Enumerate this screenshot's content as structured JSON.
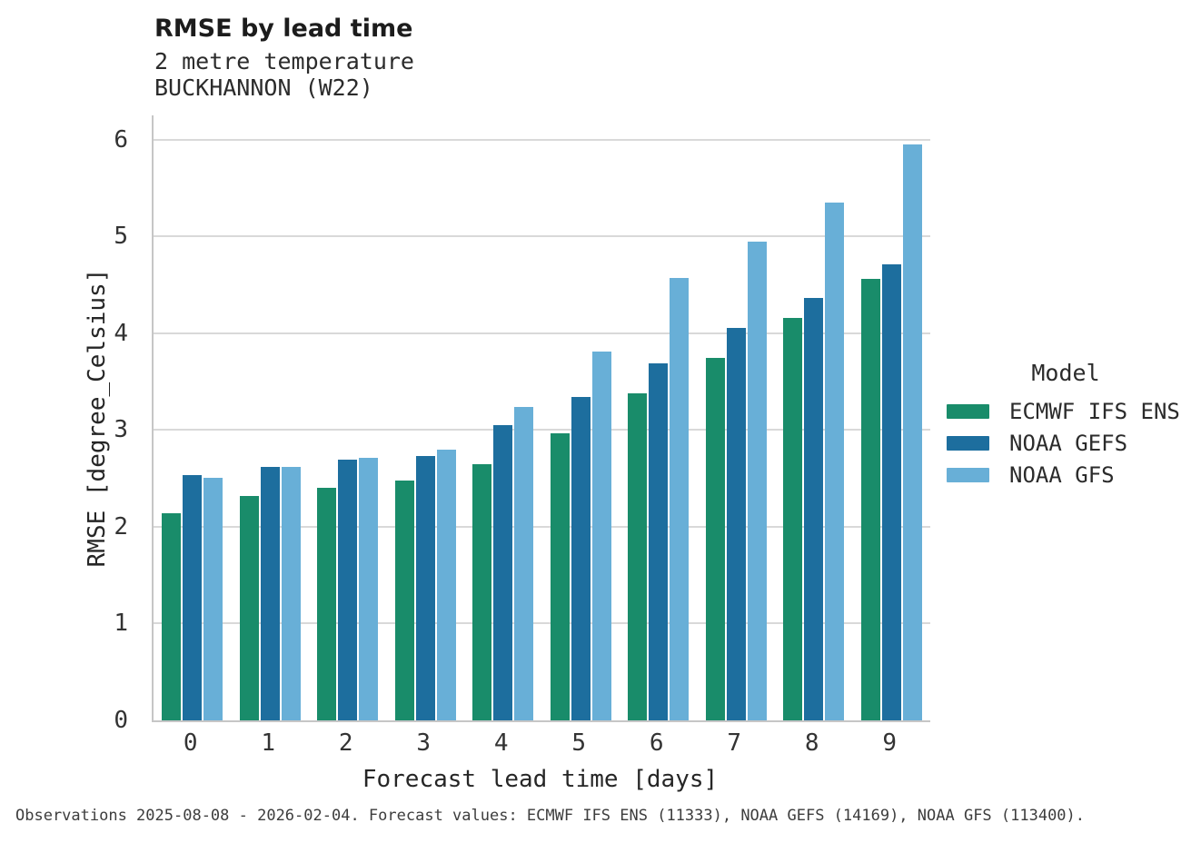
{
  "header": {
    "title": "RMSE by lead time",
    "subtitle_line1": "2 metre temperature",
    "subtitle_line2": "BUCKHANNON (W22)"
  },
  "legend": {
    "title": "Model",
    "entries": [
      {
        "label": "ECMWF IFS ENS",
        "color": "#198c6a"
      },
      {
        "label": "NOAA GEFS",
        "color": "#1d6e9e"
      },
      {
        "label": "NOAA GFS",
        "color": "#68afd7"
      }
    ]
  },
  "footer": {
    "caption": "Observations 2025-08-08 - 2026-02-04. Forecast values: ECMWF IFS ENS (11333), NOAA GEFS (14169), NOAA GFS (113400)."
  },
  "chart_data": {
    "type": "bar",
    "title": "RMSE by lead time",
    "subtitle": [
      "2 metre temperature",
      "BUCKHANNON (W22)"
    ],
    "xlabel": "Forecast lead time [days]",
    "ylabel": "RMSE [degree_Celsius]",
    "categories": [
      "0",
      "1",
      "2",
      "3",
      "4",
      "5",
      "6",
      "7",
      "8",
      "9"
    ],
    "yticks": [
      0,
      1,
      2,
      3,
      4,
      5,
      6
    ],
    "ylim": [
      0,
      6.25
    ],
    "grid": "horizontal",
    "legend_title": "Model",
    "legend_position": "right",
    "series": [
      {
        "name": "ECMWF IFS ENS",
        "color": "#198c6a",
        "values": [
          2.14,
          2.32,
          2.4,
          2.48,
          2.65,
          2.97,
          3.38,
          3.74,
          4.16,
          4.56
        ]
      },
      {
        "name": "NOAA GEFS",
        "color": "#1d6e9e",
        "values": [
          2.53,
          2.62,
          2.69,
          2.73,
          3.05,
          3.34,
          3.69,
          4.05,
          4.36,
          4.71
        ]
      },
      {
        "name": "NOAA GFS",
        "color": "#68afd7",
        "values": [
          2.51,
          2.62,
          2.71,
          2.8,
          3.24,
          3.81,
          4.57,
          4.95,
          5.35,
          5.95
        ]
      }
    ]
  }
}
